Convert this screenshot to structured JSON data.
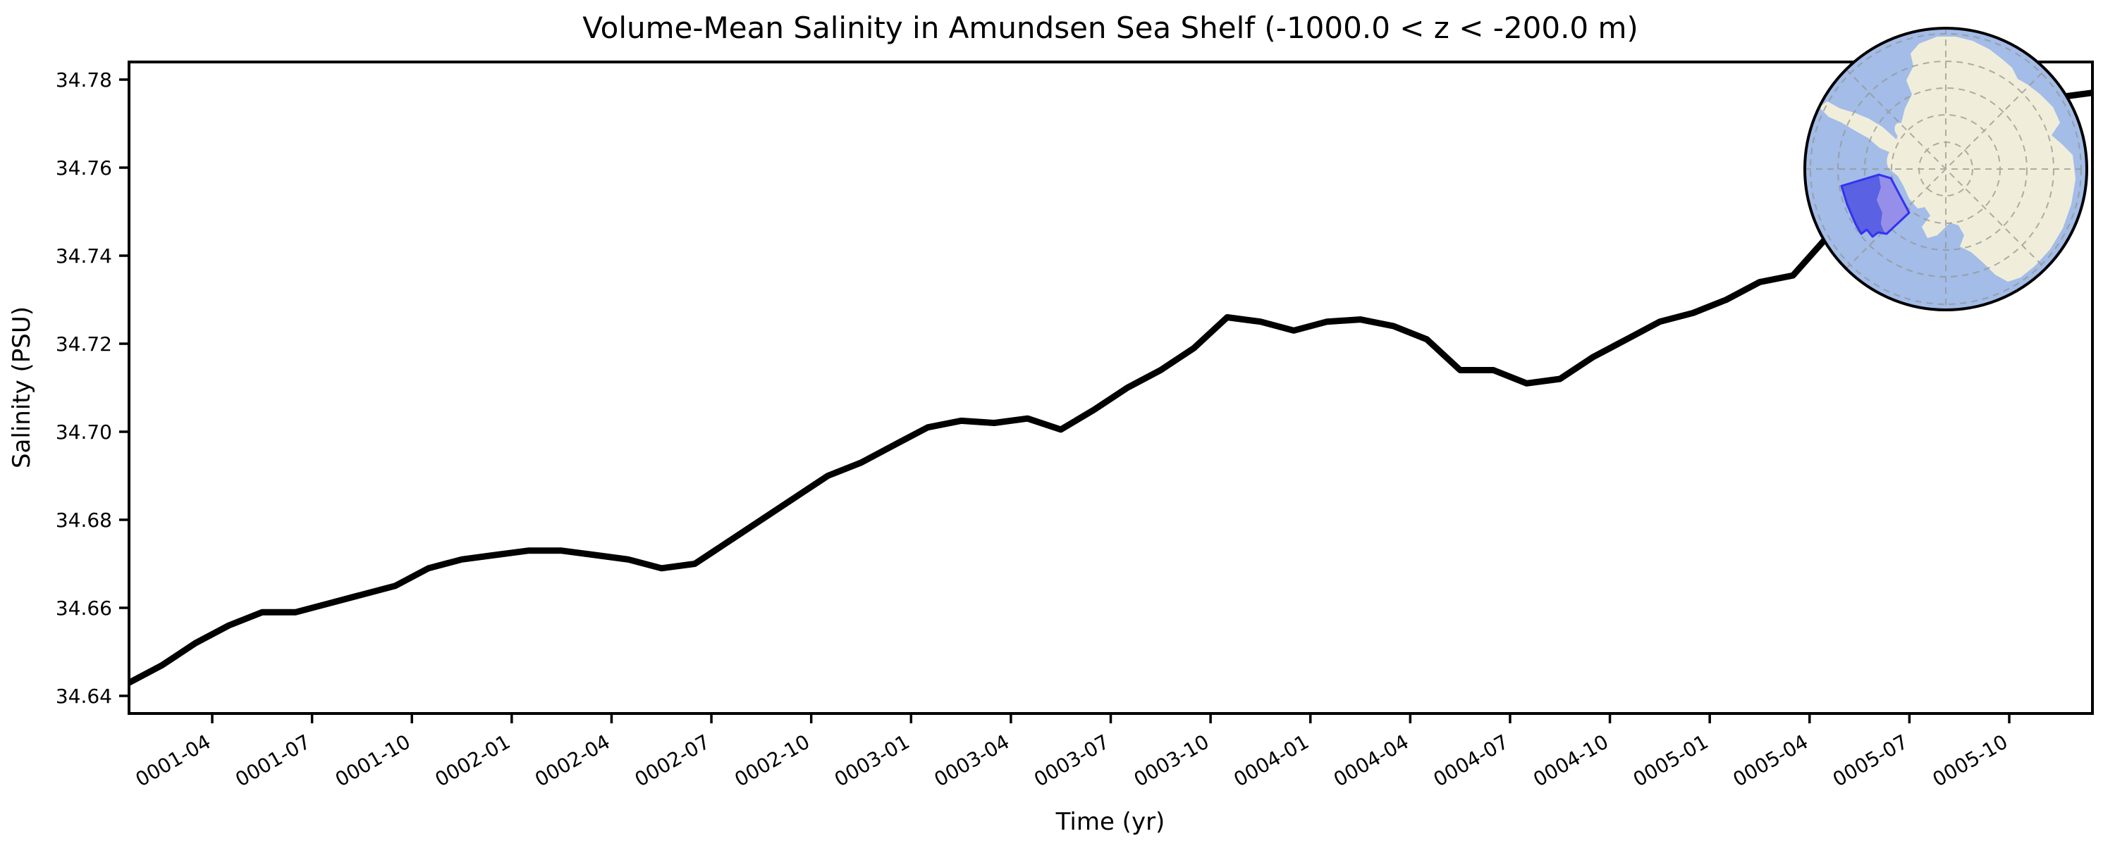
{
  "figure": {
    "background_color": "#ffffff",
    "text_color": "#000000"
  },
  "chart_data": {
    "type": "line",
    "title": "Volume-Mean Salinity in Amundsen Sea Shelf (-1000.0 < z < -200.0 m)",
    "xlabel": "Time (yr)",
    "ylabel": "Salinity (PSU)",
    "legend": "none",
    "grid": "off",
    "line_color": "#000000",
    "ylim": [
      34.636,
      34.784
    ],
    "ytick_values": [
      34.64,
      34.66,
      34.68,
      34.7,
      34.72,
      34.74,
      34.76,
      34.78
    ],
    "xtick_labels": [
      "0001-04",
      "0001-07",
      "0001-10",
      "0002-01",
      "0002-04",
      "0002-07",
      "0002-10",
      "0003-01",
      "0003-04",
      "0003-07",
      "0003-10",
      "0004-01",
      "0004-04",
      "0004-07",
      "0004-10",
      "0005-01",
      "0005-04",
      "0005-07",
      "0005-10"
    ],
    "x_months": [
      "0001-01",
      "0001-02",
      "0001-03",
      "0001-04",
      "0001-05",
      "0001-06",
      "0001-07",
      "0001-08",
      "0001-09",
      "0001-10",
      "0001-11",
      "0001-12",
      "0002-01",
      "0002-02",
      "0002-03",
      "0002-04",
      "0002-05",
      "0002-06",
      "0002-07",
      "0002-08",
      "0002-09",
      "0002-10",
      "0002-11",
      "0002-12",
      "0003-01",
      "0003-02",
      "0003-03",
      "0003-04",
      "0003-05",
      "0003-06",
      "0003-07",
      "0003-08",
      "0003-09",
      "0003-10",
      "0003-11",
      "0003-12",
      "0004-01",
      "0004-02",
      "0004-03",
      "0004-04",
      "0004-05",
      "0004-06",
      "0004-07",
      "0004-08",
      "0004-09",
      "0004-10",
      "0004-11",
      "0004-12",
      "0005-01",
      "0005-02",
      "0005-03",
      "0005-04",
      "0005-05",
      "0005-06",
      "0005-07",
      "0005-08",
      "0005-09",
      "0005-10",
      "0005-11",
      "0005-12"
    ],
    "values": [
      34.643,
      34.647,
      34.652,
      34.656,
      34.659,
      34.659,
      34.661,
      34.663,
      34.665,
      34.669,
      34.671,
      34.672,
      34.673,
      34.673,
      34.672,
      34.671,
      34.669,
      34.67,
      34.675,
      34.68,
      34.685,
      34.69,
      34.693,
      34.697,
      34.701,
      34.7025,
      34.702,
      34.703,
      34.7005,
      34.705,
      34.71,
      34.714,
      34.719,
      34.726,
      34.725,
      34.723,
      34.725,
      34.7255,
      34.724,
      34.721,
      34.714,
      34.714,
      34.711,
      34.712,
      34.717,
      34.721,
      34.725,
      34.727,
      34.73,
      34.734,
      34.7355,
      34.744,
      34.75,
      34.754,
      34.759,
      34.763,
      34.768,
      34.772,
      34.776,
      34.777
    ]
  },
  "inset_map": {
    "description": "South polar stereographic locator globe with Amundsen Sea Shelf region highlighted",
    "ocean_color": "#a3bce8",
    "land_color": "#f0eeda",
    "graticule_color": "#96968e",
    "region_fill_dark": "#5a61e2",
    "region_fill_light": "#968fe9",
    "region_border_color": "#3333ee",
    "outline_color": "#000000"
  }
}
